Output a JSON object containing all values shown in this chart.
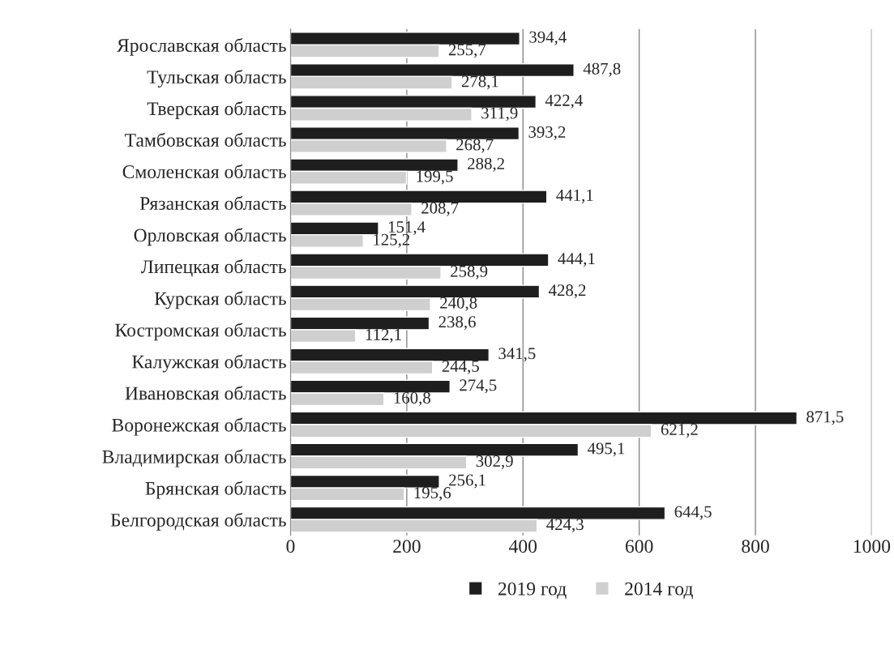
{
  "chart_data": {
    "type": "bar",
    "orientation": "horizontal",
    "categories": [
      "Ярославская область",
      "Тульская область",
      "Тверская область",
      "Тамбовская область",
      "Смоленская область",
      "Рязанская область",
      "Орловская область",
      "Липецкая область",
      "Курская область",
      "Костромская область",
      "Калужская область",
      "Ивановская область",
      "Воронежская область",
      "Владимирская область",
      "Брянская область",
      "Белгородская область"
    ],
    "series": [
      {
        "name": "2019 год",
        "color": "#1e1e1e",
        "values": [
          394.4,
          487.8,
          422.4,
          393.2,
          288.2,
          441.1,
          151.4,
          444.1,
          428.2,
          238.6,
          341.5,
          274.5,
          871.5,
          495.1,
          256.1,
          644.5
        ],
        "value_labels": [
          "394,4",
          "487,8",
          "422,4",
          "393,2",
          "288,2",
          "441,1",
          "151,4",
          "444,1",
          "428,2",
          "238,6",
          "341,5",
          "274,5",
          "871,5",
          "495,1",
          "256,1",
          "644,5"
        ]
      },
      {
        "name": "2014 год",
        "color": "#cfcfcf",
        "values": [
          255.7,
          278.1,
          311.9,
          268.7,
          199.5,
          208.7,
          125.2,
          258.9,
          240.8,
          112.1,
          244.5,
          160.8,
          621.2,
          302.9,
          195.6,
          424.3
        ],
        "value_labels": [
          "255,7",
          "278,1",
          "311,9",
          "268,7",
          "199,5",
          "208,7",
          "125,2",
          "258,9",
          "240,8",
          "112,1",
          "244,5",
          "160,8",
          "621,2",
          "302,9",
          "195,6",
          "424,3"
        ]
      }
    ],
    "xlim": [
      0,
      1000
    ],
    "xticks": [
      0,
      200,
      400,
      600,
      800,
      1000
    ],
    "grid": "x",
    "legend": "bottom"
  }
}
